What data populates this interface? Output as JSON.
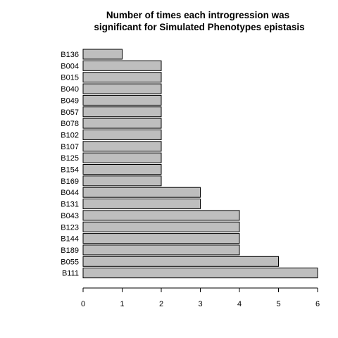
{
  "chart_data": {
    "type": "bar",
    "orientation": "horizontal",
    "title": "Number of times each introgression was significant for Simulated Phenotypes epistasis",
    "title_lines": [
      "Number of times each introgression was",
      "significant for Simulated Phenotypes epistasis"
    ],
    "xlabel": "",
    "ylabel": "",
    "categories": [
      "B136",
      "B004",
      "B015",
      "B040",
      "B049",
      "B057",
      "B078",
      "B102",
      "B107",
      "B125",
      "B154",
      "B169",
      "B044",
      "B131",
      "B043",
      "B123",
      "B144",
      "B189",
      "B055",
      "B111"
    ],
    "values": [
      1,
      2,
      2,
      2,
      2,
      2,
      2,
      2,
      2,
      2,
      2,
      2,
      3,
      3,
      4,
      4,
      4,
      4,
      5,
      6
    ],
    "xlim": [
      0,
      6
    ],
    "xticks": [
      0,
      1,
      2,
      3,
      4,
      5,
      6
    ],
    "bar_color": "#bebebe",
    "grid": false
  }
}
